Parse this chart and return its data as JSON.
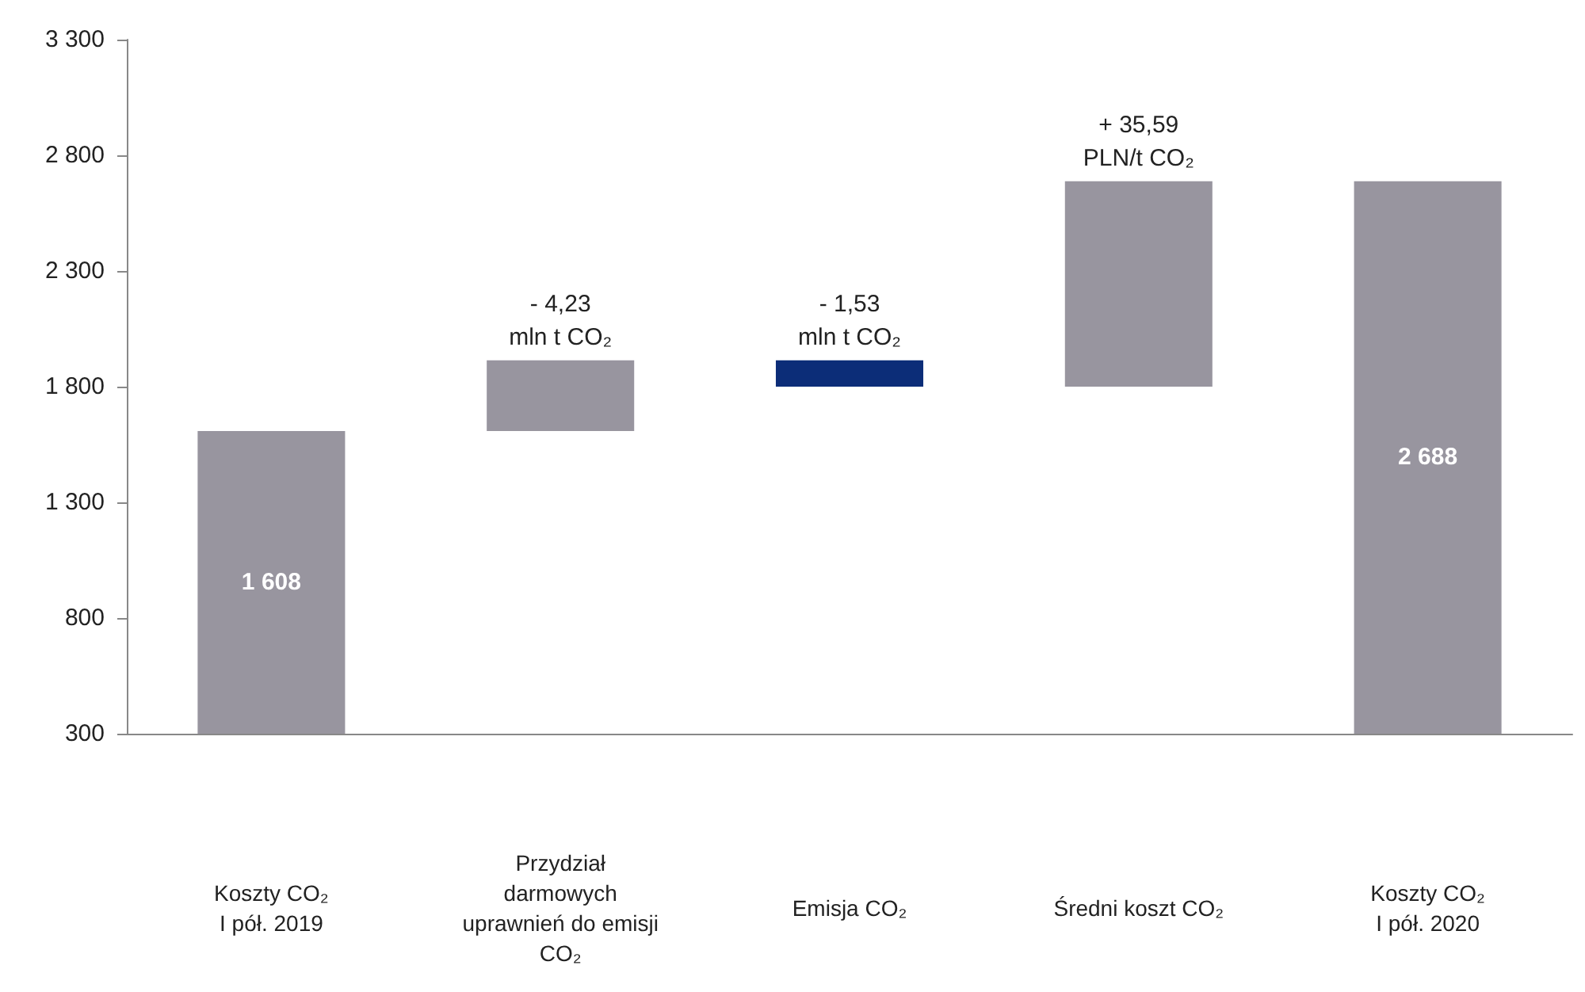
{
  "chart_data": {
    "type": "bar",
    "categories": [
      "Koszty CO₂\nI pół. 2019",
      "Przydział\ndarmowych\nuprawnień do emisji\nCO₂",
      "Emisja CO₂",
      "Średni koszt CO₂",
      "Koszty CO₂\nI pół. 2020"
    ],
    "values": [
      1608,
      306,
      114,
      888,
      2688
    ],
    "base": [
      null,
      1608,
      1800,
      1800,
      null
    ],
    "colors": [
      "#98959f",
      "#98959f",
      "#0c2d78",
      "#98959f",
      "#98959f"
    ],
    "value_labels": [
      "1 608",
      null,
      null,
      null,
      "2 688"
    ],
    "ylim": [
      300,
      3300
    ],
    "yticks": [
      {
        "value": 300,
        "label": "300"
      },
      {
        "value": 800,
        "label": "800"
      },
      {
        "value": 1300,
        "label": "1 300"
      },
      {
        "value": 1800,
        "label": "1 800"
      },
      {
        "value": 2300,
        "label": "2 300"
      },
      {
        "value": 2800,
        "label": "2 800"
      },
      {
        "value": 3300,
        "label": "3 300"
      }
    ],
    "annotations": [
      {
        "text": "- 4,23\nmln t CO₂",
        "x": "Przydział\ndarmowych\nuprawnień do emisji\nCO₂",
        "y": 1914
      },
      {
        "text": "- 1,53\nmln t CO₂",
        "x": "Emisja CO₂",
        "y": 1914
      },
      {
        "text": "+ 35,59\nPLN/t CO₂",
        "x": "Średni koszt CO₂",
        "y": 2688
      }
    ]
  }
}
